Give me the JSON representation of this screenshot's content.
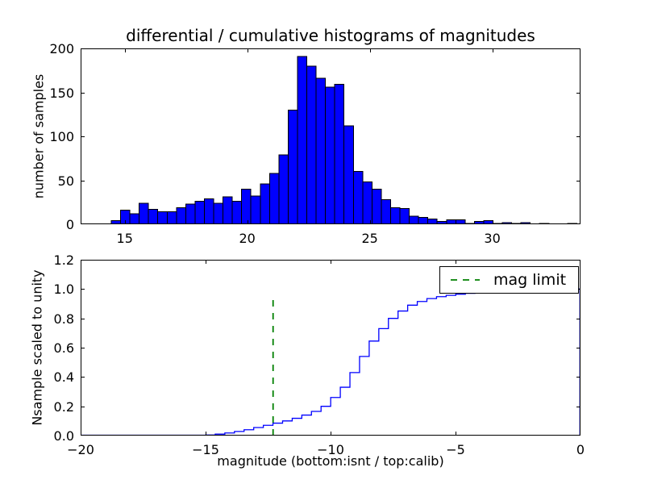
{
  "figure": {
    "background": "#ffffff",
    "accent_blue": "#0000ff",
    "accent_green": "#008000"
  },
  "chart_data": [
    {
      "type": "bar",
      "title": "differential / cumulative histograms of magnitudes",
      "xlabel": "",
      "ylabel": "number of samples",
      "xlim": [
        13.2,
        33.6
      ],
      "ylim": [
        0,
        200
      ],
      "xticks": [
        15,
        20,
        25,
        30
      ],
      "xtick_labels": [
        "15",
        "20",
        "25",
        "30"
      ],
      "yticks": [
        0,
        50,
        100,
        150,
        200
      ],
      "ytick_labels": [
        "0",
        "50",
        "100",
        "150",
        "200"
      ],
      "grid": false,
      "bar_color": "#0000ff",
      "bar_edge_color": "#000000",
      "bin_start": 14.45,
      "bin_width": 0.38,
      "values": [
        4,
        16,
        12,
        24,
        17,
        14,
        14,
        19,
        23,
        26,
        29,
        24,
        31,
        26,
        40,
        32,
        46,
        58,
        79,
        130,
        191,
        180,
        166,
        156,
        159,
        112,
        60,
        48,
        40,
        28,
        19,
        18,
        9,
        8,
        6,
        3,
        5,
        5,
        1,
        3,
        4,
        1,
        2,
        1,
        2,
        0,
        1,
        0,
        0,
        1
      ]
    },
    {
      "type": "line",
      "subtype": "cumulative-step",
      "xlabel": "magnitude (bottom:isnt / top:calib)",
      "ylabel": "Nsample scaled to unity",
      "xlim": [
        -20,
        0
      ],
      "ylim": [
        0,
        1.2
      ],
      "xticks": [
        -20,
        -15,
        -10,
        -5,
        0
      ],
      "xtick_labels": [
        "−20",
        "−15",
        "−10",
        "−5",
        "0"
      ],
      "yticks": [
        0,
        0.2,
        0.4,
        0.6,
        0.8,
        1.0,
        1.2
      ],
      "ytick_labels": [
        "0.0",
        "0.2",
        "0.4",
        "0.6",
        "0.8",
        "1.0",
        "1.2"
      ],
      "grid": false,
      "line_color": "#0000ff",
      "step_start": -15.0,
      "step_width": 0.385,
      "cumulative_fractions": [
        0.004,
        0.01,
        0.018,
        0.028,
        0.04,
        0.055,
        0.07,
        0.085,
        0.1,
        0.118,
        0.14,
        0.165,
        0.2,
        0.26,
        0.33,
        0.43,
        0.54,
        0.645,
        0.73,
        0.8,
        0.85,
        0.89,
        0.915,
        0.935,
        0.948,
        0.957,
        0.965,
        0.971,
        0.977,
        0.982,
        0.986,
        0.989,
        0.992,
        0.994,
        0.9955,
        0.997,
        0.998,
        0.999,
        1.0
      ],
      "closes_to_zero_at_right_edge": true,
      "mag_limit_line": {
        "x": -12.3,
        "y_bottom": 0,
        "y_top": 0.95,
        "color": "#008000",
        "style": "dashed",
        "label": "mag limit"
      },
      "legend": {
        "label": "mag limit",
        "position": "upper right",
        "sample_color": "#008000"
      }
    }
  ]
}
